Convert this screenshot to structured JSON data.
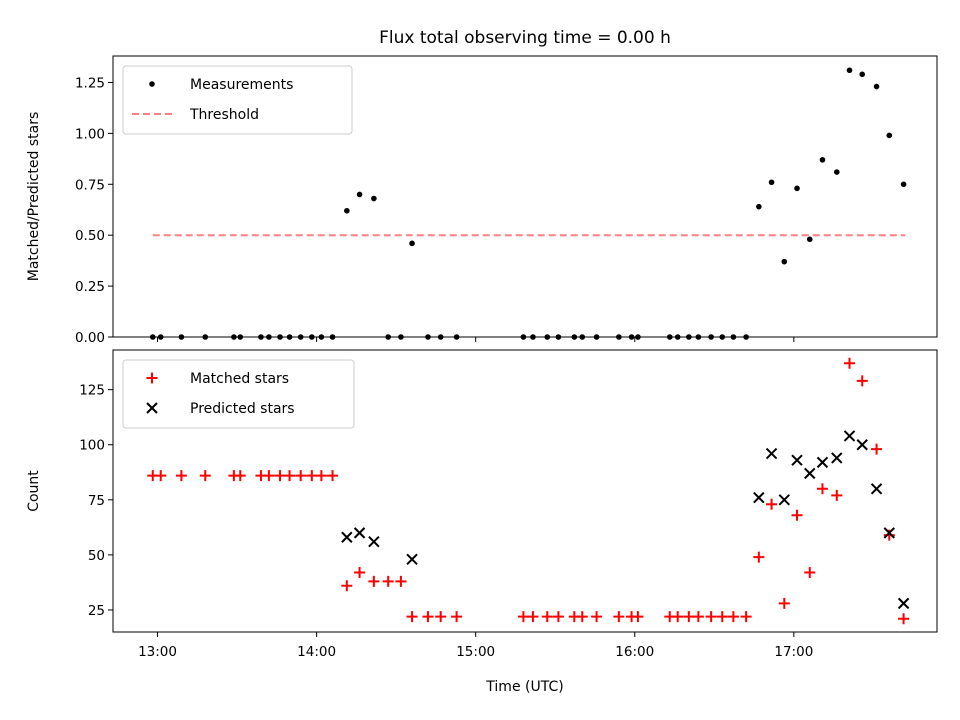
{
  "chart_data": {
    "title": "Flux total observing time = 0.00 h",
    "xlabel": "Time (UTC)",
    "x_ticks": [
      "13:00",
      "14:00",
      "15:00",
      "16:00",
      "17:00"
    ],
    "x_tick_hours": [
      13,
      14,
      15,
      16,
      17
    ],
    "xlim": [
      12.72,
      17.9
    ],
    "panels": [
      {
        "type": "scatter",
        "ylabel": "Matched/Predicted stars",
        "ylim": [
          0,
          1.38
        ],
        "y_ticks": [
          0.0,
          0.25,
          0.5,
          0.75,
          1.0,
          1.25
        ],
        "y_tick_labels": [
          "0.00",
          "0.25",
          "0.50",
          "0.75",
          "1.00",
          "1.25"
        ],
        "legend": [
          {
            "label": "Measurements",
            "marker": "dot",
            "color": "#000000"
          },
          {
            "label": "Threshold",
            "marker": "dashed-line",
            "color": "#ff8080"
          }
        ],
        "threshold": {
          "value": 0.5,
          "x_start": 12.97,
          "x_end": 17.7,
          "color": "#ff8080"
        },
        "series": [
          {
            "name": "Measurements",
            "color": "#000000",
            "x": [
              12.97,
              13.02,
              13.15,
              13.3,
              13.48,
              13.52,
              13.65,
              13.7,
              13.77,
              13.83,
              13.9,
              13.97,
              14.03,
              14.1,
              14.19,
              14.27,
              14.36,
              14.45,
              14.53,
              14.6,
              14.7,
              14.78,
              14.88,
              15.3,
              15.36,
              15.45,
              15.52,
              15.62,
              15.67,
              15.76,
              15.9,
              15.98,
              16.02,
              16.22,
              16.27,
              16.34,
              16.4,
              16.48,
              16.55,
              16.62,
              16.7,
              16.78,
              16.86,
              16.94,
              17.02,
              17.1,
              17.18,
              17.27,
              17.35,
              17.43,
              17.52,
              17.6,
              17.69
            ],
            "y": [
              0,
              0,
              0,
              0,
              0,
              0,
              0,
              0,
              0,
              0,
              0,
              0,
              0,
              0,
              0.62,
              0.7,
              0.68,
              0,
              0,
              0.46,
              0,
              0,
              0,
              0,
              0,
              0,
              0,
              0,
              0,
              0,
              0,
              0,
              0,
              0,
              0,
              0,
              0,
              0,
              0,
              0,
              0,
              0.64,
              0.76,
              0.37,
              0.73,
              0.48,
              0.87,
              0.81,
              1.31,
              1.29,
              1.23,
              0.99,
              0.75
            ]
          }
        ]
      },
      {
        "type": "scatter",
        "ylabel": "Count",
        "ylim": [
          15,
          143
        ],
        "y_ticks": [
          25,
          50,
          75,
          100,
          125
        ],
        "y_tick_labels": [
          "25",
          "50",
          "75",
          "100",
          "125"
        ],
        "legend": [
          {
            "label": "Matched stars",
            "marker": "plus",
            "color": "#ff0000"
          },
          {
            "label": "Predicted stars",
            "marker": "x",
            "color": "#000000"
          }
        ],
        "series": [
          {
            "name": "Matched stars",
            "color": "#ff0000",
            "x": [
              12.97,
              13.02,
              13.15,
              13.3,
              13.48,
              13.52,
              13.65,
              13.7,
              13.77,
              13.83,
              13.9,
              13.97,
              14.03,
              14.1,
              14.19,
              14.27,
              14.36,
              14.45,
              14.53,
              14.6,
              14.7,
              14.78,
              14.88,
              15.3,
              15.36,
              15.45,
              15.52,
              15.62,
              15.67,
              15.76,
              15.9,
              15.98,
              16.02,
              16.22,
              16.27,
              16.34,
              16.4,
              16.48,
              16.55,
              16.62,
              16.7,
              16.78,
              16.86,
              16.94,
              17.02,
              17.1,
              17.18,
              17.27,
              17.35,
              17.43,
              17.52,
              17.6,
              17.69
            ],
            "y": [
              86,
              86,
              86,
              86,
              86,
              86,
              86,
              86,
              86,
              86,
              86,
              86,
              86,
              86,
              36,
              42,
              38,
              38,
              38,
              22,
              22,
              22,
              22,
              22,
              22,
              22,
              22,
              22,
              22,
              22,
              22,
              22,
              22,
              22,
              22,
              22,
              22,
              22,
              22,
              22,
              22,
              49,
              73,
              28,
              68,
              42,
              80,
              77,
              137,
              129,
              98,
              59,
              21
            ]
          },
          {
            "name": "Predicted stars",
            "color": "#000000",
            "x": [
              14.19,
              14.27,
              14.36,
              14.6,
              16.78,
              16.86,
              16.94,
              17.02,
              17.1,
              17.18,
              17.27,
              17.35,
              17.43,
              17.52,
              17.6,
              17.69
            ],
            "y": [
              58,
              60,
              56,
              48,
              76,
              96,
              75,
              93,
              87,
              92,
              94,
              104,
              100,
              80,
              60,
              28
            ]
          }
        ]
      }
    ]
  }
}
